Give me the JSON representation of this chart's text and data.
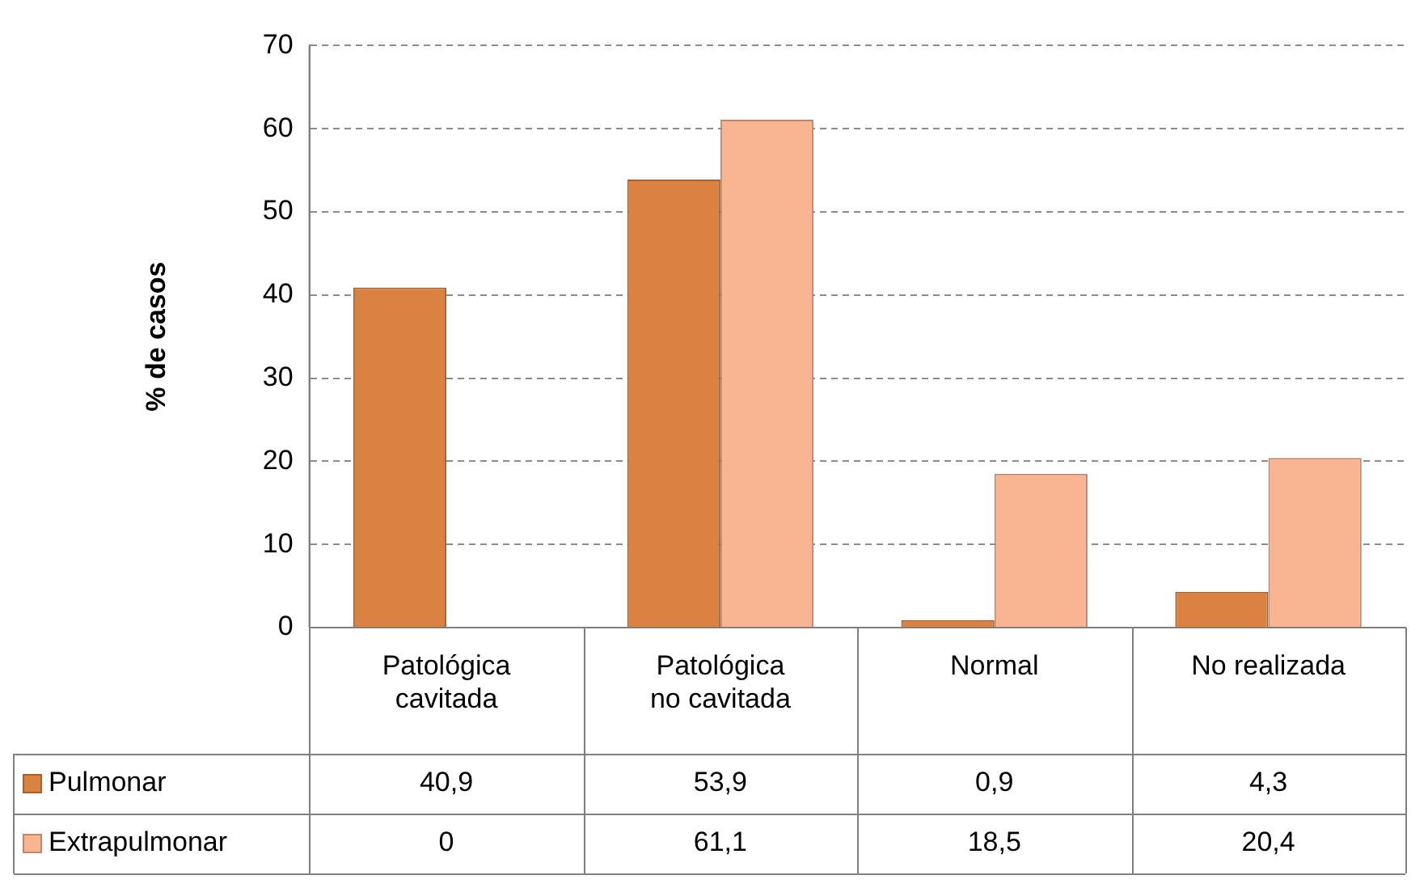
{
  "chart_data": {
    "type": "bar",
    "ylabel": "% de casos",
    "categories": [
      "Patológica cavitada",
      "Patológica no cavitada",
      "Normal",
      "No realizada"
    ],
    "series": [
      {
        "name": "Pulmonar",
        "color": "#db8242",
        "values": [
          40.9,
          53.9,
          0.9,
          4.3
        ],
        "value_labels": [
          "40,9",
          "53,9",
          "0,9",
          "4,3"
        ]
      },
      {
        "name": "Extrapulmonar",
        "color": "#f9b592",
        "values": [
          0,
          61.1,
          18.5,
          20.4
        ],
        "value_labels": [
          "0",
          "61,1",
          "18,5",
          "20,4"
        ]
      }
    ],
    "ylim": [
      0,
      70
    ],
    "yticks": [
      0,
      10,
      20,
      30,
      40,
      50,
      60,
      70
    ],
    "grid": "y",
    "legend": "bottom"
  }
}
